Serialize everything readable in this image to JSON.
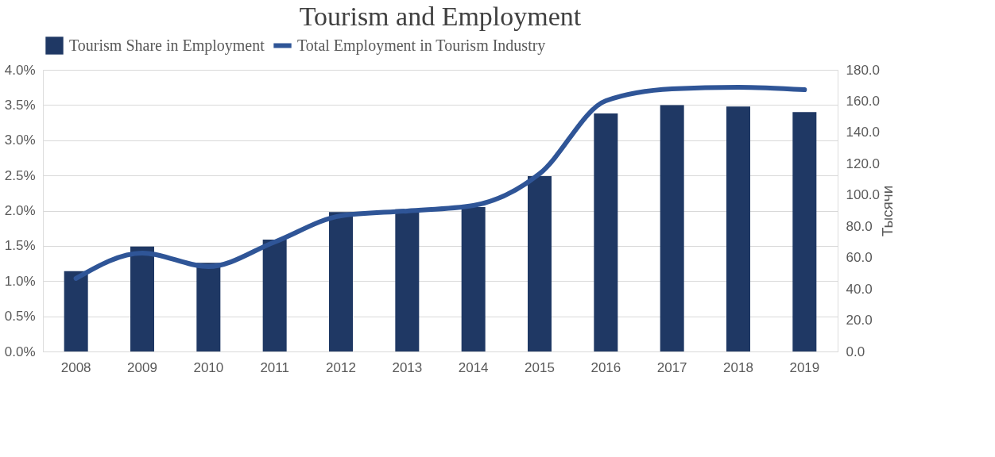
{
  "chart_data": {
    "type": "bar",
    "title": "Tourism and Employment",
    "categories": [
      "2008",
      "2009",
      "2010",
      "2011",
      "2012",
      "2013",
      "2014",
      "2015",
      "2016",
      "2017",
      "2018",
      "2019"
    ],
    "series": [
      {
        "name": "Tourism Share in Employment",
        "color": "#1f3864",
        "values": [
          1.14,
          1.49,
          1.26,
          1.59,
          1.98,
          2.02,
          2.05,
          2.49,
          3.38,
          3.5,
          3.48,
          3.4
        ]
      },
      {
        "name": "Total Employment in Tourism Industry",
        "type": "line",
        "axis": "y2",
        "color": "#2f5597",
        "values": [
          46.7,
          62.9,
          54.3,
          70,
          86.7,
          89.8,
          93.3,
          113.6,
          160.2,
          167.8,
          168.9,
          167.3
        ]
      }
    ],
    "ylim": [
      0,
      4
    ],
    "yticks": [
      {
        "value": 0,
        "label": "0.0%"
      },
      {
        "value": 0.5,
        "label": "0.5%"
      },
      {
        "value": 1,
        "label": "1.0%"
      },
      {
        "value": 1.5,
        "label": "1.5%"
      },
      {
        "value": 2,
        "label": "2.0%"
      },
      {
        "value": 2.5,
        "label": "2.5%"
      },
      {
        "value": 3,
        "label": "3.0%"
      },
      {
        "value": 3.5,
        "label": "3.5%"
      },
      {
        "value": 4,
        "label": "4.0%"
      }
    ],
    "y2lim": [
      0,
      180
    ],
    "y2ticks": [
      {
        "value": 0,
        "label": "0.0"
      },
      {
        "value": 20,
        "label": "20.0"
      },
      {
        "value": 40,
        "label": "40.0"
      },
      {
        "value": 60,
        "label": "60.0"
      },
      {
        "value": 80,
        "label": "80.0"
      },
      {
        "value": 100,
        "label": "100.0"
      },
      {
        "value": 120,
        "label": "120.0"
      },
      {
        "value": 140,
        "label": "140.0"
      },
      {
        "value": 160,
        "label": "160.0"
      },
      {
        "value": 180,
        "label": "180.0"
      }
    ],
    "y2label": "Тысячи",
    "grid": "y",
    "legend": "top",
    "marker": "none",
    "line_style": "solid"
  }
}
